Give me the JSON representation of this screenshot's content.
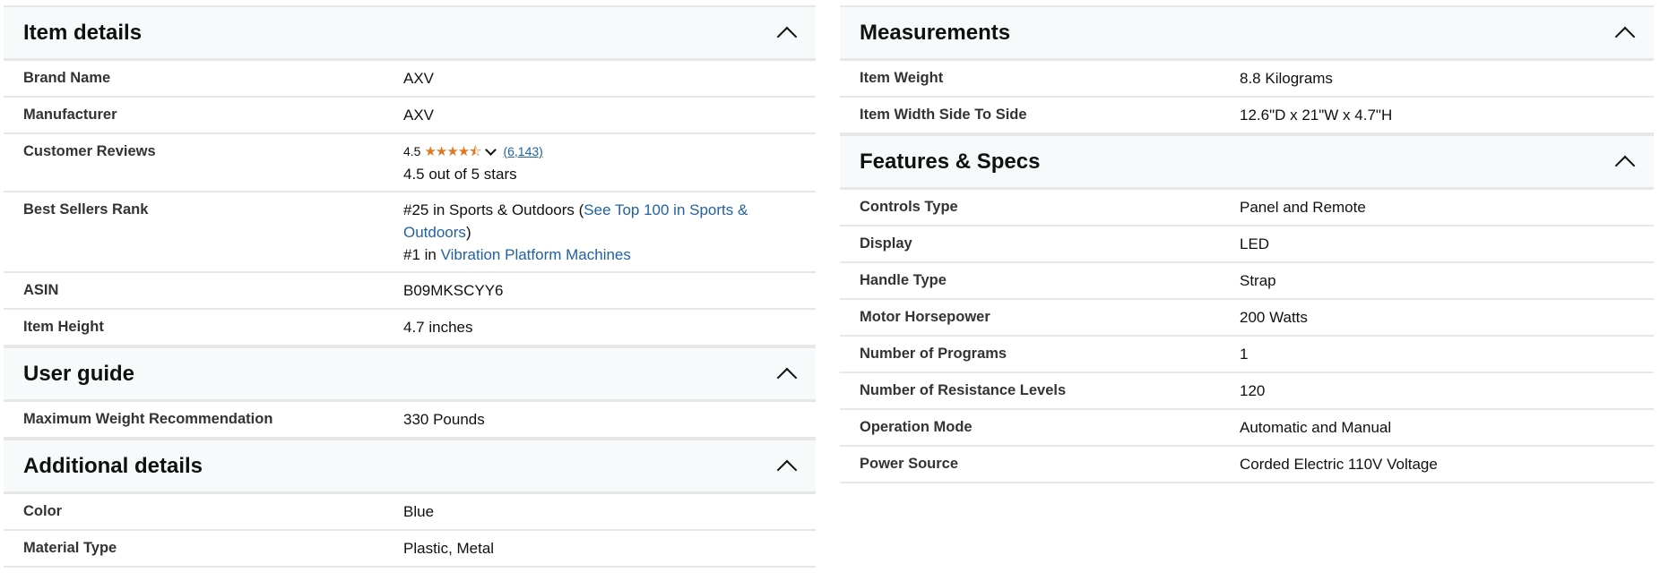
{
  "colors": {
    "header_bg": "#f7fafa",
    "border": "#e7e7e7",
    "link": "#2162a1",
    "star": "#de7921"
  },
  "left": [
    {
      "title": "Item details",
      "icon": "chevron-up-icon",
      "rows": [
        {
          "label": "Brand Name",
          "value": "AXV"
        },
        {
          "label": "Manufacturer",
          "value": "AXV"
        },
        {
          "label": "Customer Reviews",
          "type": "reviews",
          "rating": "4.5",
          "stars": 4.5,
          "count": "(6,143)",
          "summary": "4.5 out of 5 stars"
        },
        {
          "label": "Best Sellers Rank",
          "type": "rank",
          "rank1_prefix": "#25 in Sports & Outdoors (",
          "rank1_link": "See Top 100 in Sports & Outdoors",
          "rank1_suffix": ")",
          "rank2_prefix": "#1 in ",
          "rank2_link": "Vibration Platform Machines"
        },
        {
          "label": "ASIN",
          "value": "B09MKSCYY6"
        },
        {
          "label": "Item Height",
          "value": "4.7 inches"
        }
      ]
    },
    {
      "title": "User guide",
      "icon": "chevron-up-icon",
      "rows": [
        {
          "label": "Maximum Weight Recommendation",
          "value": "330 Pounds"
        }
      ]
    },
    {
      "title": "Additional details",
      "icon": "chevron-up-icon",
      "rows": [
        {
          "label": "Color",
          "value": "Blue"
        },
        {
          "label": "Material Type",
          "value": "Plastic, Metal"
        }
      ]
    }
  ],
  "right": [
    {
      "title": "Measurements",
      "icon": "chevron-up-icon",
      "rows": [
        {
          "label": "Item Weight",
          "value": "8.8 Kilograms"
        },
        {
          "label": "Item Width Side To Side",
          "value": "12.6\"D x 21\"W x 4.7\"H"
        }
      ]
    },
    {
      "title": "Features & Specs",
      "icon": "chevron-up-icon",
      "rows": [
        {
          "label": "Controls Type",
          "value": "Panel and Remote"
        },
        {
          "label": "Display",
          "value": "LED"
        },
        {
          "label": "Handle Type",
          "value": "Strap"
        },
        {
          "label": "Motor Horsepower",
          "value": "200 Watts"
        },
        {
          "label": "Number of Programs",
          "value": "1"
        },
        {
          "label": "Number of Resistance Levels",
          "value": "120"
        },
        {
          "label": "Operation Mode",
          "value": "Automatic and Manual"
        },
        {
          "label": "Power Source",
          "value": "Corded Electric 110V Voltage"
        }
      ]
    }
  ]
}
